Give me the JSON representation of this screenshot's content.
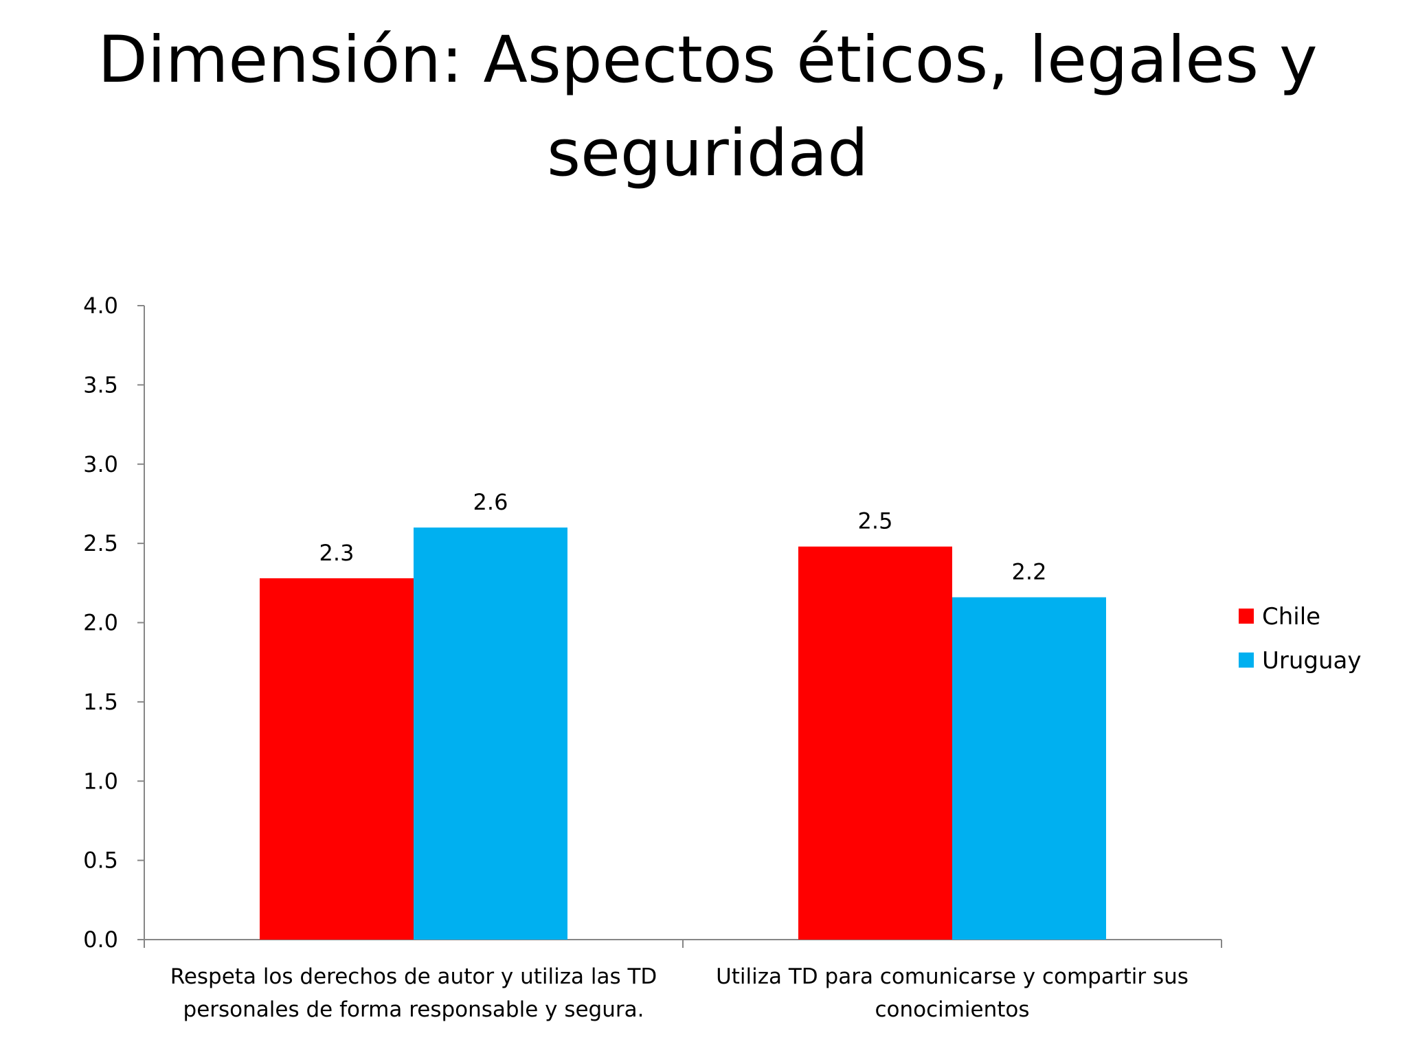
{
  "slide": {
    "title": "Dimensión: Aspectos éticos, legales y seguridad"
  },
  "chart_data": {
    "type": "bar",
    "categories": [
      [
        "Respeta los derechos de autor y utiliza las TD",
        "personales de forma responsable y segura."
      ],
      [
        "Utiliza TD para comunicarse y compartir sus",
        "conocimientos"
      ]
    ],
    "series": [
      {
        "name": "Chile",
        "color": "#ff0000",
        "values": [
          2.28,
          2.48
        ],
        "labels": [
          "2.3",
          "2.5"
        ]
      },
      {
        "name": "Uruguay",
        "color": "#00b0f0",
        "values": [
          2.6,
          2.16
        ],
        "labels": [
          "2.6",
          "2.2"
        ]
      }
    ],
    "ylim": [
      0,
      4
    ],
    "yticks": [
      "0.0",
      "0.5",
      "1.0",
      "1.5",
      "2.0",
      "2.5",
      "3.0",
      "3.5",
      "4.0"
    ],
    "ytick_values": [
      0,
      0.5,
      1.0,
      1.5,
      2.0,
      2.5,
      3.0,
      3.5,
      4.0
    ],
    "grid": false,
    "legend_position": "right"
  }
}
